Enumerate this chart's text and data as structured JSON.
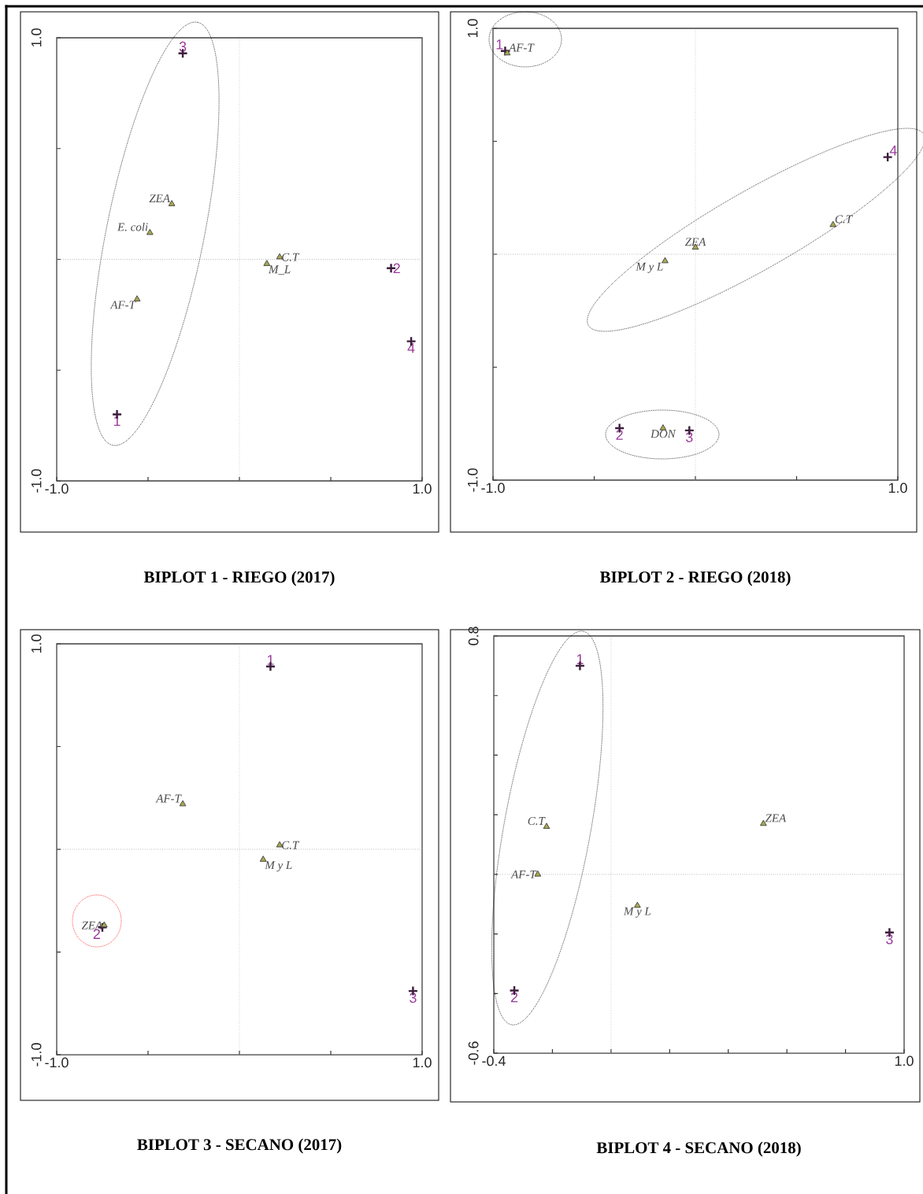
{
  "chart_data": [
    {
      "type": "scatter",
      "title": "**BIPLOT 1 - RIEGO (2017)**",
      "series": [
        {
          "color": "#3c1e3c",
          "marker": "cross",
          "x": [
            -0.67,
            0.83,
            -0.31,
            0.94
          ],
          "values": [
            -0.7,
            -0.04,
            0.93,
            -0.37
          ]
        },
        {
          "color": "#a8a850",
          "marker": "triangle",
          "x": [
            -0.56,
            -0.37,
            -0.49,
            0.22,
            0.15
          ],
          "values": [
            -0.18,
            0.25,
            0.12,
            0.01,
            -0.02
          ]
        }
      ],
      "annotations": [
        {
          "text": "1",
          "x": -0.67,
          "y": -0.7
        },
        {
          "text": "2",
          "x": 0.83,
          "y": -0.04
        },
        {
          "text": "3",
          "x": -0.31,
          "y": 0.93
        },
        {
          "text": "4",
          "x": 0.94,
          "y": -0.37
        },
        {
          "text": "AF-T",
          "x": -0.56,
          "y": -0.18
        },
        {
          "text": "ZEA",
          "x": -0.37,
          "y": 0.25
        },
        {
          "text": "E. coli",
          "x": -0.49,
          "y": 0.12
        },
        {
          "text": "C.T",
          "x": 0.22,
          "y": 0.01
        },
        {
          "text": "M_L",
          "x": 0.15,
          "y": -0.02
        }
      ],
      "xlim": [
        -1,
        1
      ],
      "ylim": [
        -1,
        1
      ],
      "xticks": [
        {
          "value": -1,
          "label": "-1.0"
        },
        {
          "value": -0.5,
          "label": null
        },
        {
          "value": 0,
          "label": null
        },
        {
          "value": 0.5,
          "label": null
        },
        {
          "value": 1,
          "label": "1.0"
        }
      ],
      "yticks": [
        {
          "value": -1,
          "label": "-1.0"
        },
        {
          "value": -0.5,
          "label": null
        },
        {
          "value": 0,
          "label": null
        },
        {
          "value": 0.5,
          "label": null
        },
        {
          "value": 1,
          "label": "1.0"
        }
      ],
      "ref_lines": [
        {
          "axis": "x",
          "value": 0,
          "color": "#b4b4b4",
          "line_style": "dotted"
        },
        {
          "axis": "y",
          "value": 0,
          "color": "#909090",
          "line_style": "dotted"
        }
      ],
      "grid": false
    },
    {
      "type": "scatter",
      "title": "**BIPLOT 2 - RIEGO (2018)**",
      "series": [
        {
          "color": "#3c1e3c",
          "marker": "cross",
          "x": [
            -0.94,
            -0.375,
            -0.03,
            0.95
          ],
          "values": [
            0.9,
            -0.77,
            -0.78,
            0.43
          ]
        },
        {
          "color": "#a8a850",
          "marker": "triangle",
          "x": [
            -0.93,
            0.0,
            0.68,
            -0.15,
            -0.16
          ],
          "values": [
            0.89,
            0.03,
            0.13,
            -0.03,
            -0.77
          ]
        }
      ],
      "annotations": [
        {
          "text": "1",
          "x": -0.94,
          "y": 0.9
        },
        {
          "text": "2",
          "x": -0.375,
          "y": -0.77
        },
        {
          "text": "3",
          "x": -0.03,
          "y": -0.78
        },
        {
          "text": "4",
          "x": 0.95,
          "y": 0.43
        },
        {
          "text": "AF-T",
          "x": -0.93,
          "y": 0.89
        },
        {
          "text": "ZEA",
          "x": 0.0,
          "y": 0.03
        },
        {
          "text": "C.T",
          "x": 0.68,
          "y": 0.13
        },
        {
          "text": "M y L",
          "x": -0.15,
          "y": -0.03
        },
        {
          "text": "DON",
          "x": -0.16,
          "y": -0.77
        }
      ],
      "xlim": [
        -1,
        1
      ],
      "ylim": [
        -1,
        1
      ],
      "xticks": [
        {
          "value": -1,
          "label": "-1.0"
        },
        {
          "value": -0.5,
          "label": null
        },
        {
          "value": 0,
          "label": null
        },
        {
          "value": 0.5,
          "label": null
        },
        {
          "value": 1,
          "label": "1.0"
        }
      ],
      "yticks": [
        {
          "value": -1,
          "label": "-1.0"
        },
        {
          "value": -0.5,
          "label": null
        },
        {
          "value": 0,
          "label": null
        },
        {
          "value": 0.5,
          "label": null
        },
        {
          "value": 1,
          "label": "1.0"
        }
      ],
      "ref_lines": [
        {
          "axis": "x",
          "value": 0,
          "color": "#b4b4b4",
          "line_style": "dotted"
        },
        {
          "axis": "y",
          "value": 0,
          "color": "#909090",
          "line_style": "dotted"
        }
      ],
      "grid": false
    },
    {
      "type": "scatter",
      "title": "**BIPLOT 3 - SECANO (2017)**",
      "series": [
        {
          "color": "#3c1e3c",
          "marker": "cross",
          "x": [
            0.17,
            -0.75,
            0.95
          ],
          "values": [
            0.89,
            -0.38,
            -0.69
          ]
        },
        {
          "color": "#a8a850",
          "marker": "triangle",
          "x": [
            -0.31,
            0.22,
            0.13,
            -0.74
          ],
          "values": [
            0.22,
            0.02,
            -0.05,
            -0.37
          ]
        }
      ],
      "annotations": [
        {
          "text": "1",
          "x": 0.17,
          "y": 0.89
        },
        {
          "text": "2",
          "x": -0.75,
          "y": -0.38
        },
        {
          "text": "3",
          "x": 0.95,
          "y": -0.69
        },
        {
          "text": "AF-T",
          "x": -0.31,
          "y": 0.22
        },
        {
          "text": "C.T",
          "x": 0.22,
          "y": 0.02
        },
        {
          "text": "M y L",
          "x": 0.13,
          "y": -0.05
        },
        {
          "text": "ZEA",
          "x": -0.74,
          "y": -0.37
        }
      ],
      "xlim": [
        -1,
        1
      ],
      "ylim": [
        -1,
        1
      ],
      "xticks": [
        {
          "value": -1,
          "label": "-1.0"
        },
        {
          "value": -0.5,
          "label": null
        },
        {
          "value": 0,
          "label": null
        },
        {
          "value": 0.5,
          "label": null
        },
        {
          "value": 1,
          "label": "1.0"
        }
      ],
      "yticks": [
        {
          "value": -1,
          "label": "-1.0"
        },
        {
          "value": -0.5,
          "label": null
        },
        {
          "value": 0,
          "label": null
        },
        {
          "value": 0.5,
          "label": null
        },
        {
          "value": 1,
          "label": "1.0"
        }
      ],
      "ref_lines": [
        {
          "axis": "x",
          "value": 0,
          "color": "#b4b4b4",
          "line_style": "dotted"
        },
        {
          "axis": "y",
          "value": 0,
          "color": "#909090",
          "line_style": "dotted"
        }
      ],
      "grid": false
    },
    {
      "type": "scatter",
      "title": "**BIPLOT 4 - SECANO (2018)**",
      "series": [
        {
          "color": "#3c1e3c",
          "marker": "cross",
          "x": [
            -0.106,
            -0.33,
            0.95
          ],
          "values": [
            0.7,
            -0.39,
            -0.195
          ]
        },
        {
          "color": "#a8a850",
          "marker": "triangle",
          "x": [
            -0.22,
            -0.25,
            0.52,
            0.09
          ],
          "values": [
            0.16,
            0.0,
            0.17,
            -0.105
          ]
        }
      ],
      "annotations": [
        {
          "text": "1",
          "x": -0.106,
          "y": 0.7
        },
        {
          "text": "2",
          "x": -0.33,
          "y": -0.39
        },
        {
          "text": "3",
          "x": 0.95,
          "y": -0.195
        },
        {
          "text": "C.T",
          "x": -0.22,
          "y": 0.16
        },
        {
          "text": "AF-T",
          "x": -0.25,
          "y": 0.0
        },
        {
          "text": "ZEA",
          "x": 0.52,
          "y": 0.17
        },
        {
          "text": "M y L",
          "x": 0.09,
          "y": -0.105
        }
      ],
      "xlim": [
        -0.4,
        1.0
      ],
      "ylim": [
        -0.6,
        0.8
      ],
      "xticks": [
        {
          "value": -0.4,
          "label": "-0.4"
        },
        {
          "value": -0.2,
          "label": null
        },
        {
          "value": 0,
          "label": null
        },
        {
          "value": 0.2,
          "label": null
        },
        {
          "value": 0.4,
          "label": null
        },
        {
          "value": 0.6,
          "label": null
        },
        {
          "value": 0.8,
          "label": null
        },
        {
          "value": 1.0,
          "label": "1.0"
        }
      ],
      "yticks": [
        {
          "value": -0.6,
          "label": "-0.6"
        },
        {
          "value": -0.4,
          "label": null
        },
        {
          "value": -0.2,
          "label": null
        },
        {
          "value": 0,
          "label": null
        },
        {
          "value": 0.2,
          "label": null
        },
        {
          "value": 0.4,
          "label": null
        },
        {
          "value": 0.6,
          "label": null
        },
        {
          "value": 0.8,
          "label": "0.8"
        }
      ],
      "ref_lines": [
        {
          "axis": "x",
          "value": 0,
          "color": "#b4b4b4",
          "line_style": "dotted"
        },
        {
          "axis": "y",
          "value": 0,
          "color": "#909090",
          "line_style": "dotted"
        }
      ],
      "grid": false
    }
  ]
}
